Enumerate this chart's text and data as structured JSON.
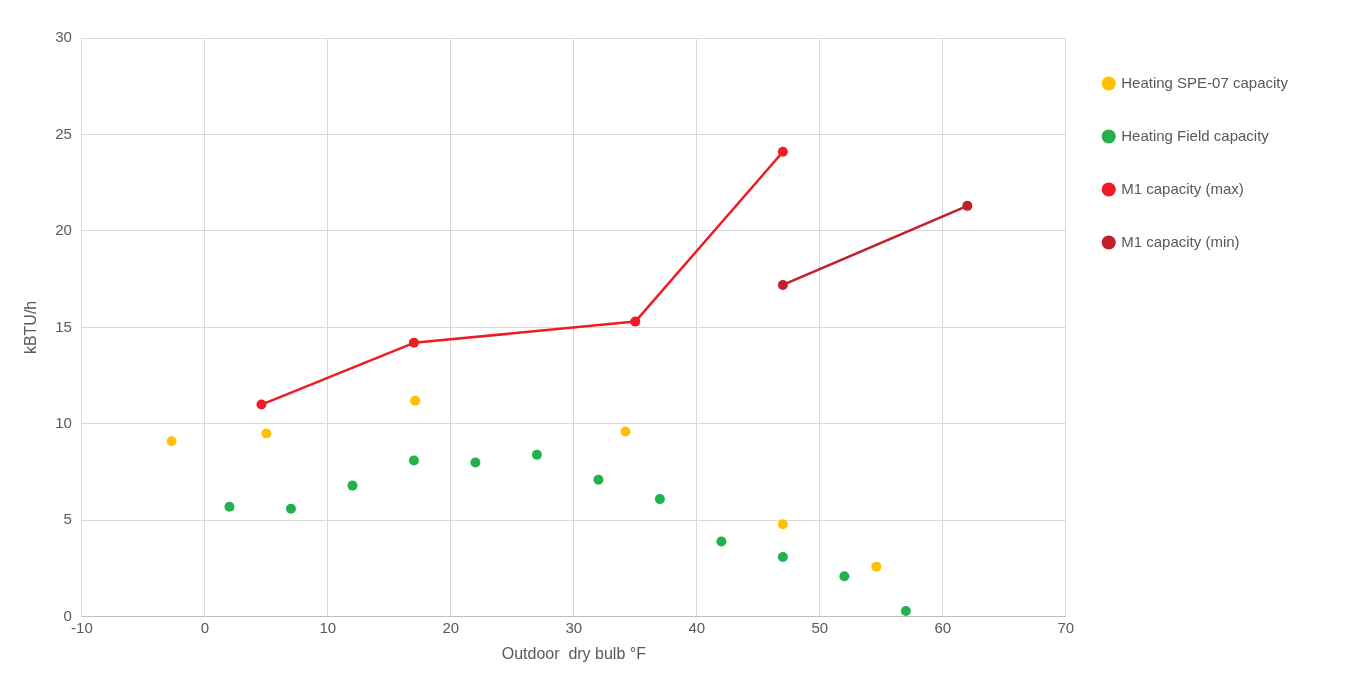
{
  "chart_data": {
    "type": "scatter",
    "xlabel": "Outdoor  dry bulb °F",
    "ylabel": "kBTU/h",
    "xlim": [
      -10,
      70
    ],
    "xticks": [
      -10,
      0,
      10,
      20,
      30,
      40,
      50,
      60,
      70
    ],
    "ylim": [
      0,
      30
    ],
    "yticks": [
      0,
      5,
      10,
      15,
      20,
      25,
      30
    ],
    "grid": true,
    "legend": "right",
    "marker": "circle",
    "line_style": "solid",
    "series": [
      {
        "name": "Heating SPE-07 capacity",
        "color": "#ffc000",
        "x": [
          -2.7,
          5,
          17.1,
          34.2,
          47,
          54.6
        ],
        "values": [
          9.1,
          9.5,
          11.2,
          9.6,
          4.8,
          2.6
        ]
      },
      {
        "name": "Heating Field capacity",
        "color": "#22b14c",
        "x": [
          2,
          7,
          12,
          17,
          22,
          27,
          32,
          37,
          42,
          47,
          52,
          57
        ],
        "values": [
          5.7,
          5.6,
          6.8,
          8.1,
          8,
          8.4,
          7.1,
          6.1,
          3.9,
          3.1,
          2.1,
          0.3
        ]
      },
      {
        "name": "M1 capacity (max)",
        "type": "line",
        "color": "#ee1c24",
        "x": [
          4.6,
          17,
          35,
          47
        ],
        "values": [
          11,
          14.2,
          15.3,
          24.1
        ]
      },
      {
        "name": "M1 capacity (min)",
        "type": "line",
        "color": "#c0202a",
        "x": [
          47,
          62
        ],
        "values": [
          17.2,
          21.3
        ]
      }
    ]
  }
}
